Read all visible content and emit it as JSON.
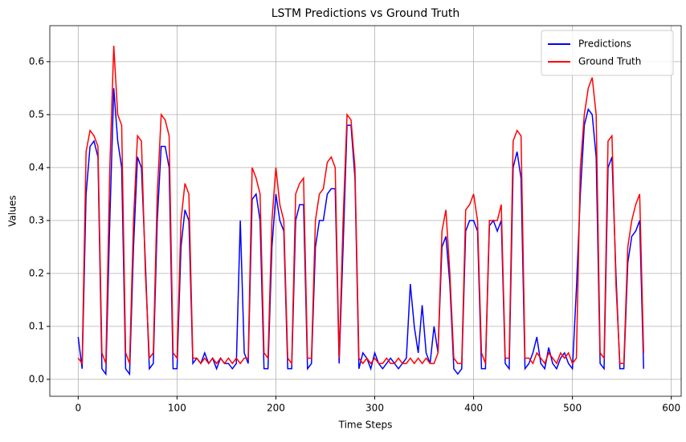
{
  "chart_data": {
    "type": "line",
    "title": "LSTM Predictions vs Ground Truth",
    "x_label": "Time Steps",
    "y_label": "Values",
    "x": [
      0,
      4,
      8,
      12,
      16,
      20,
      24,
      28,
      32,
      36,
      40,
      44,
      48,
      52,
      56,
      60,
      64,
      68,
      72,
      76,
      80,
      84,
      88,
      92,
      96,
      100,
      104,
      108,
      112,
      116,
      120,
      124,
      128,
      132,
      136,
      140,
      144,
      148,
      152,
      156,
      160,
      164,
      168,
      172,
      176,
      180,
      184,
      188,
      192,
      196,
      200,
      204,
      208,
      212,
      216,
      220,
      224,
      228,
      232,
      236,
      240,
      244,
      248,
      252,
      256,
      260,
      264,
      268,
      272,
      276,
      280,
      284,
      288,
      292,
      296,
      300,
      304,
      308,
      312,
      316,
      320,
      324,
      328,
      332,
      336,
      340,
      344,
      348,
      352,
      356,
      360,
      364,
      368,
      372,
      376,
      380,
      384,
      388,
      392,
      396,
      400,
      404,
      408,
      412,
      416,
      420,
      424,
      428,
      432,
      436,
      440,
      444,
      448,
      452,
      456,
      460,
      464,
      468,
      472,
      476,
      480,
      484,
      488,
      492,
      496,
      500,
      504,
      508,
      512,
      516,
      520,
      524,
      528,
      532,
      536,
      540,
      544,
      548,
      552,
      556,
      560,
      564,
      568,
      572
    ],
    "series": [
      {
        "name": "Predictions",
        "color": "#0000ff",
        "values": [
          0.08,
          0.02,
          0.35,
          0.44,
          0.45,
          0.42,
          0.02,
          0.01,
          0.3,
          0.55,
          0.45,
          0.4,
          0.02,
          0.01,
          0.25,
          0.42,
          0.4,
          0.22,
          0.02,
          0.03,
          0.3,
          0.44,
          0.44,
          0.4,
          0.02,
          0.02,
          0.25,
          0.32,
          0.3,
          0.03,
          0.04,
          0.03,
          0.05,
          0.03,
          0.04,
          0.02,
          0.04,
          0.03,
          0.03,
          0.02,
          0.03,
          0.3,
          0.05,
          0.03,
          0.34,
          0.35,
          0.3,
          0.02,
          0.02,
          0.25,
          0.35,
          0.3,
          0.28,
          0.02,
          0.02,
          0.3,
          0.33,
          0.33,
          0.02,
          0.03,
          0.25,
          0.3,
          0.3,
          0.35,
          0.36,
          0.36,
          0.03,
          0.25,
          0.48,
          0.48,
          0.38,
          0.02,
          0.05,
          0.04,
          0.02,
          0.05,
          0.03,
          0.02,
          0.03,
          0.04,
          0.03,
          0.02,
          0.03,
          0.04,
          0.18,
          0.1,
          0.05,
          0.14,
          0.05,
          0.03,
          0.1,
          0.05,
          0.25,
          0.27,
          0.18,
          0.02,
          0.01,
          0.02,
          0.28,
          0.3,
          0.3,
          0.28,
          0.02,
          0.02,
          0.29,
          0.3,
          0.28,
          0.3,
          0.03,
          0.02,
          0.4,
          0.43,
          0.38,
          0.02,
          0.03,
          0.05,
          0.08,
          0.03,
          0.02,
          0.06,
          0.03,
          0.02,
          0.04,
          0.05,
          0.03,
          0.02,
          0.17,
          0.35,
          0.48,
          0.51,
          0.5,
          0.42,
          0.03,
          0.02,
          0.4,
          0.42,
          0.2,
          0.02,
          0.02,
          0.22,
          0.27,
          0.28,
          0.3,
          0.02
        ]
      },
      {
        "name": "Ground Truth",
        "color": "#ff0000",
        "values": [
          0.04,
          0.03,
          0.43,
          0.47,
          0.46,
          0.44,
          0.05,
          0.03,
          0.4,
          0.63,
          0.5,
          0.48,
          0.05,
          0.03,
          0.3,
          0.46,
          0.45,
          0.2,
          0.04,
          0.05,
          0.35,
          0.5,
          0.49,
          0.46,
          0.05,
          0.04,
          0.3,
          0.37,
          0.35,
          0.04,
          0.04,
          0.03,
          0.04,
          0.03,
          0.04,
          0.03,
          0.04,
          0.03,
          0.04,
          0.03,
          0.04,
          0.03,
          0.04,
          0.04,
          0.4,
          0.38,
          0.35,
          0.05,
          0.04,
          0.3,
          0.4,
          0.33,
          0.3,
          0.04,
          0.03,
          0.35,
          0.37,
          0.38,
          0.04,
          0.04,
          0.3,
          0.35,
          0.36,
          0.41,
          0.42,
          0.4,
          0.04,
          0.3,
          0.5,
          0.49,
          0.4,
          0.04,
          0.03,
          0.04,
          0.03,
          0.04,
          0.03,
          0.03,
          0.04,
          0.03,
          0.03,
          0.04,
          0.03,
          0.03,
          0.04,
          0.03,
          0.04,
          0.03,
          0.04,
          0.03,
          0.03,
          0.05,
          0.28,
          0.32,
          0.2,
          0.04,
          0.03,
          0.03,
          0.32,
          0.33,
          0.35,
          0.3,
          0.05,
          0.03,
          0.3,
          0.3,
          0.3,
          0.33,
          0.04,
          0.04,
          0.45,
          0.47,
          0.46,
          0.04,
          0.04,
          0.03,
          0.05,
          0.04,
          0.03,
          0.05,
          0.04,
          0.03,
          0.05,
          0.04,
          0.05,
          0.03,
          0.04,
          0.4,
          0.5,
          0.55,
          0.57,
          0.5,
          0.05,
          0.04,
          0.45,
          0.46,
          0.18,
          0.03,
          0.03,
          0.25,
          0.3,
          0.33,
          0.35,
          0.05
        ]
      }
    ],
    "xlim": [
      -28.7,
      610
    ],
    "xticks": [
      0,
      100,
      200,
      300,
      400,
      500,
      600
    ],
    "ylim": [
      -0.032,
      0.668
    ],
    "yticks": [
      {
        "value": 0,
        "label": "0.0"
      },
      0.1,
      0.2,
      0.3,
      0.4,
      0.5,
      0.6
    ],
    "grid": true,
    "legend": "upper right"
  }
}
